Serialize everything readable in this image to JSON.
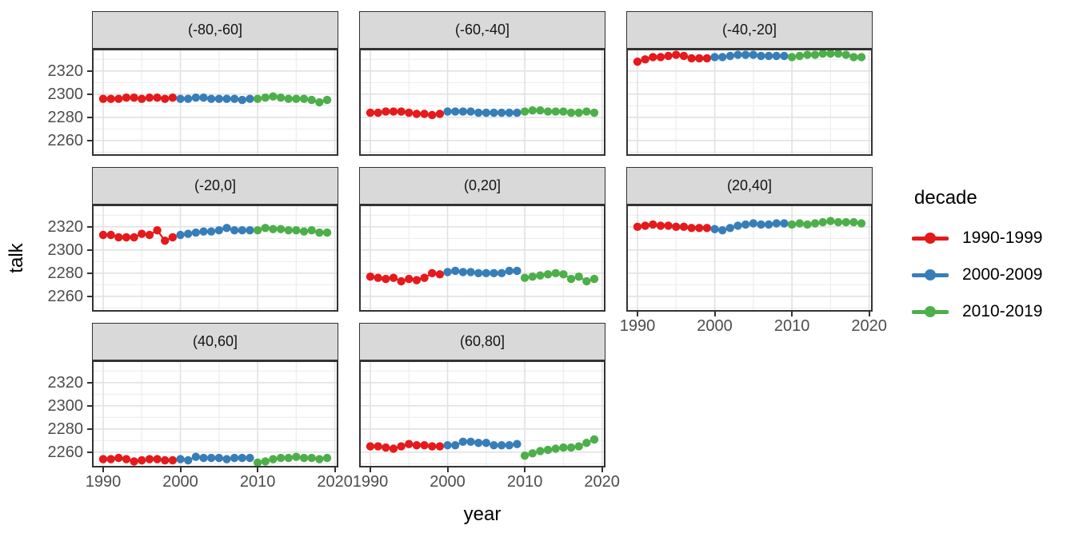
{
  "chart_data": {
    "type": "line",
    "title": "",
    "xlabel": "year",
    "ylabel": "talk",
    "x": [
      1990,
      1991,
      1992,
      1993,
      1994,
      1995,
      1996,
      1997,
      1998,
      1999,
      2000,
      2001,
      2002,
      2003,
      2004,
      2005,
      2006,
      2007,
      2008,
      2009,
      2010,
      2011,
      2012,
      2013,
      2014,
      2015,
      2016,
      2017,
      2018,
      2019
    ],
    "x_domain": [
      1988.55,
      2020.45
    ],
    "y_domain": [
      2246.8,
      2339.2
    ],
    "x_ticks": [
      1990,
      2000,
      2010,
      2020
    ],
    "y_ticks": [
      2260,
      2280,
      2300,
      2320
    ],
    "x_minor": [
      1995,
      2005,
      2015
    ],
    "y_minor": [
      2250,
      2270,
      2290,
      2310,
      2330
    ],
    "grid": true,
    "legend_position": "right",
    "legend": {
      "title": "decade",
      "entries": [
        {
          "label": "1990-1999",
          "color": "#E41A1C"
        },
        {
          "label": "2000-2009",
          "color": "#377EB8"
        },
        {
          "label": "2010-2019",
          "color": "#4DAF4A"
        }
      ]
    },
    "colors": {
      "panel_bg": "#FFFFFF",
      "strip_bg": "#D9D9D9",
      "panel_border": "#333333",
      "grid_major": "#E2E2E2",
      "grid_minor": "#EFEFEF",
      "tick_label": "#4D4D4D"
    },
    "facets": [
      {
        "label": "(-80,-60]",
        "values": [
          2296,
          2296,
          2296,
          2297,
          2297,
          2296,
          2297,
          2297,
          2296,
          2297,
          2296,
          2296,
          2297,
          2297,
          2296,
          2296,
          2296,
          2296,
          2295,
          2296,
          2296,
          2297,
          2298,
          2297,
          2296,
          2296,
          2296,
          2295,
          2293,
          2295
        ]
      },
      {
        "label": "(-60,-40]",
        "values": [
          2284,
          2284,
          2285,
          2285,
          2285,
          2284,
          2283,
          2283,
          2282,
          2283,
          2285,
          2285,
          2285,
          2285,
          2284,
          2284,
          2284,
          2284,
          2284,
          2284,
          2285,
          2286,
          2286,
          2285,
          2285,
          2285,
          2284,
          2284,
          2285,
          2284
        ]
      },
      {
        "label": "(-40,-20]",
        "values": [
          2328,
          2330,
          2332,
          2332,
          2333,
          2334,
          2333,
          2331,
          2331,
          2331,
          2332,
          2332,
          2333,
          2334,
          2334,
          2334,
          2333,
          2333,
          2333,
          2333,
          2332,
          2333,
          2334,
          2334,
          2335,
          2335,
          2335,
          2334,
          2332,
          2332
        ]
      },
      {
        "label": "(-20,0]",
        "values": [
          2313,
          2313,
          2311,
          2311,
          2311,
          2314,
          2313,
          2317,
          2308,
          2311,
          2313,
          2314,
          2315,
          2316,
          2316,
          2317,
          2319,
          2317,
          2317,
          2317,
          2317,
          2319,
          2318,
          2318,
          2317,
          2317,
          2316,
          2317,
          2315,
          2315
        ]
      },
      {
        "label": "(0,20]",
        "values": [
          2277,
          2276,
          2275,
          2276,
          2273,
          2275,
          2274,
          2276,
          2280,
          2279,
          2281,
          2282,
          2281,
          2281,
          2280,
          2280,
          2280,
          2280,
          2282,
          2282,
          2276,
          2277,
          2278,
          2279,
          2280,
          2279,
          2275,
          2277,
          2273,
          2275
        ]
      },
      {
        "label": "(20,40]",
        "values": [
          2320,
          2321,
          2322,
          2321,
          2321,
          2320,
          2320,
          2319,
          2319,
          2319,
          2318,
          2317,
          2319,
          2321,
          2322,
          2323,
          2322,
          2322,
          2323,
          2323,
          2322,
          2323,
          2322,
          2323,
          2324,
          2325,
          2324,
          2324,
          2324,
          2323
        ]
      },
      {
        "label": "(40,60]",
        "values": [
          2254,
          2254,
          2255,
          2254,
          2252,
          2253,
          2254,
          2254,
          2253,
          2253,
          2254,
          2253,
          2256,
          2255,
          2255,
          2255,
          2254,
          2255,
          2255,
          2255,
          2251,
          2252,
          2254,
          2255,
          2255,
          2256,
          2255,
          2255,
          2254,
          2255
        ]
      },
      {
        "label": "(60,80]",
        "values": [
          2265,
          2265,
          2264,
          2263,
          2265,
          2267,
          2266,
          2266,
          2265,
          2265,
          2266,
          2266,
          2269,
          2269,
          2268,
          2268,
          2266,
          2266,
          2266,
          2267,
          2257,
          2259,
          2261,
          2262,
          2263,
          2264,
          2264,
          2265,
          2268,
          2271
        ]
      }
    ]
  }
}
